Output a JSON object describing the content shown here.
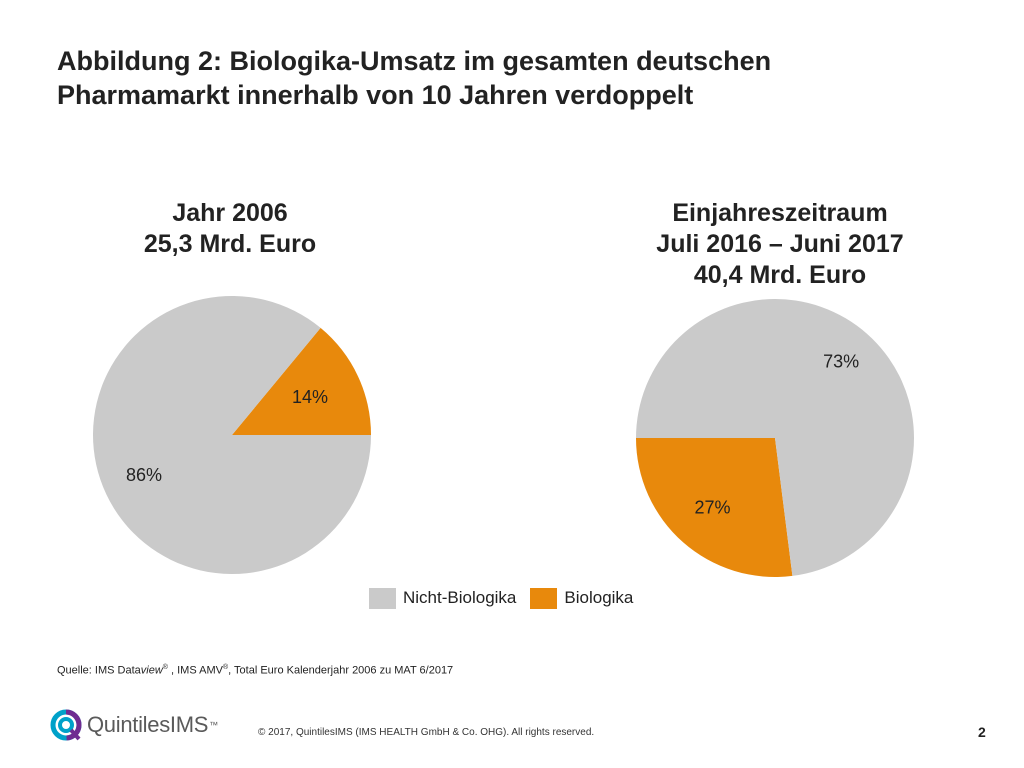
{
  "title": {
    "line1": "Abbildung 2: Biologika-Umsatz im gesamten deutschen",
    "line2": "Pharmamarkt innerhalb von 10 Jahren verdoppelt"
  },
  "colors": {
    "non_bio": "#cacaca",
    "bio": "#e8890c"
  },
  "chart_data": [
    {
      "type": "pie",
      "title": [
        "Jahr 2006",
        "25,3 Mrd. Euro"
      ],
      "series": [
        {
          "name": "Nicht-Biologika",
          "value": 86,
          "label": "86%"
        },
        {
          "name": "Biologika",
          "value": 14,
          "label": "14%"
        }
      ]
    },
    {
      "type": "pie",
      "title": [
        "Einjahreszeitraum",
        "Juli 2016 – Juni 2017",
        "40,4 Mrd. Euro"
      ],
      "series": [
        {
          "name": "Nicht-Biologika",
          "value": 73,
          "label": "73%"
        },
        {
          "name": "Biologika",
          "value": 27,
          "label": "27%"
        }
      ]
    }
  ],
  "legend": {
    "items": [
      "Nicht-Biologika",
      "Biologika"
    ]
  },
  "source": {
    "prefix": "Quelle: IMS Data",
    "italic": "view",
    "reg1": "®",
    "middle": " , IMS AMV",
    "reg2": "®",
    "suffix": ", Total Euro Kalenderjahr 2006 zu MAT 6/2017"
  },
  "footer": {
    "logo_text": "QuintilesIMS",
    "logo_tm": "™",
    "copyright": "© 2017, QuintilesIMS (IMS HEALTH GmbH & Co. OHG). All rights reserved.",
    "page_number": "2"
  }
}
